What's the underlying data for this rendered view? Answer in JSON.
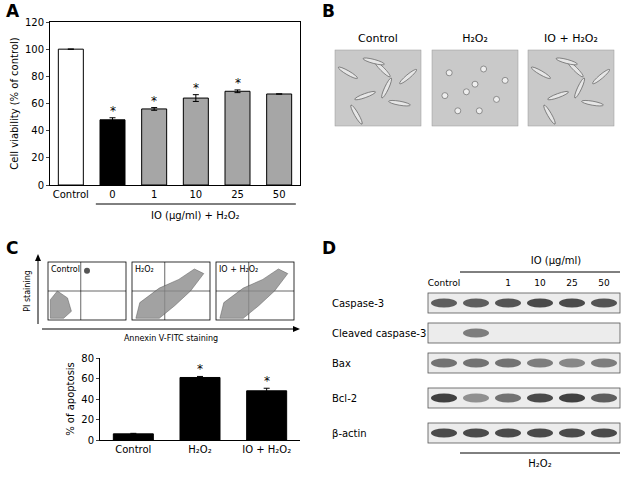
{
  "panel_labels": [
    "A",
    "B",
    "C",
    "D"
  ],
  "chart_data": [
    {
      "type": "bar",
      "categories": [
        "Control",
        "0",
        "1",
        "10",
        "25",
        "50"
      ],
      "values": [
        100,
        48,
        56,
        64,
        69,
        67
      ],
      "errors": [
        0,
        1.5,
        1,
        2.5,
        1,
        0
      ],
      "colors": [
        "#ffffff",
        "#000000",
        "#a6a6a6",
        "#a6a6a6",
        "#a6a6a6",
        "#a6a6a6"
      ],
      "ylabel": "Cell viability (% of control)",
      "ylim": [
        0,
        120
      ],
      "yticks": [
        0,
        20,
        40,
        60,
        80,
        100,
        120
      ],
      "grid": false,
      "annotations": [
        {
          "text": "*",
          "category": "0"
        },
        {
          "text": "*",
          "category": "1"
        },
        {
          "text": "*",
          "category": "10"
        },
        {
          "text": "*",
          "category": "25"
        }
      ],
      "group_label": {
        "text": "IO (μg/ml) + H₂O₂",
        "from": "0",
        "to": "50"
      }
    },
    {
      "type": "bar",
      "categories": [
        "Control",
        "H₂O₂",
        "IO + H₂O₂"
      ],
      "values": [
        6,
        61,
        48
      ],
      "errors": [
        0.5,
        1,
        2.5
      ],
      "color": "#000000",
      "ylabel": "% of apoptosis",
      "ylim": [
        0,
        80
      ],
      "yticks": [
        0,
        20,
        40,
        60,
        80
      ],
      "grid": false,
      "annotations": [
        {
          "text": "*",
          "category": "H₂O₂"
        },
        {
          "text": "*",
          "category": "IO + H₂O₂"
        }
      ]
    }
  ],
  "micrographs": {
    "labels": [
      "Control",
      "H₂O₂",
      "IO + H₂O₂"
    ]
  },
  "flow": {
    "labels": [
      "Control",
      "H₂O₂",
      "IO + H₂O₂"
    ],
    "xlabel": "Annexin V-FITC staining",
    "ylabel": "PI staining"
  },
  "western": {
    "header": "IO (μg/ml)",
    "lanes": [
      "Control",
      null,
      "1",
      "10",
      "25",
      "50"
    ],
    "rows": [
      "Caspase-3",
      "Cleaved caspase-3",
      "Bax",
      "Bcl-2",
      "β-actin"
    ],
    "footer": "H₂O₂"
  }
}
